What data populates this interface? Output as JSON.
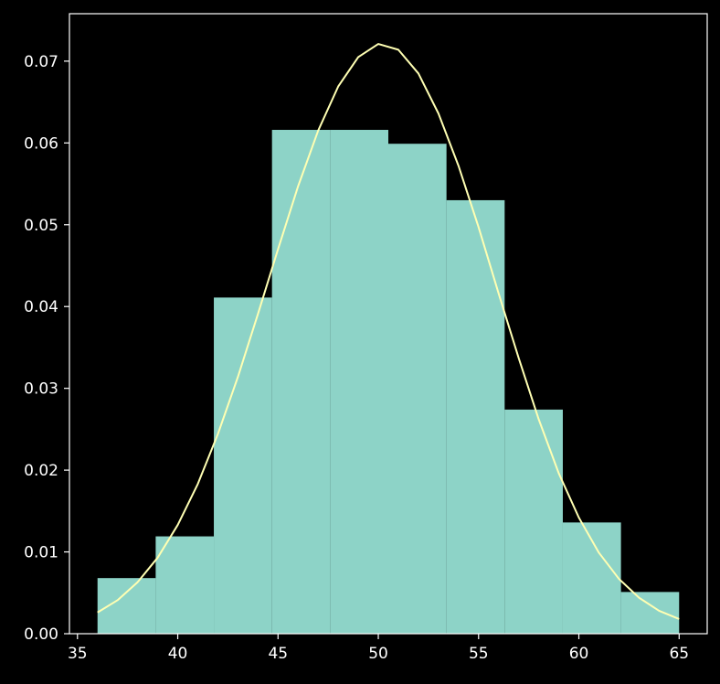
{
  "colors": {
    "background": "#000000",
    "axes": "#ffffff",
    "bars": "#8dd3c7",
    "curve": "#ffffb3",
    "text": "#ffffff"
  },
  "chart_data": {
    "type": "bar",
    "subtype": "histogram-with-density-curve",
    "title": "",
    "xlabel": "",
    "ylabel": "",
    "xlim": [
      34.6,
      66.4
    ],
    "ylim": [
      0,
      0.0758
    ],
    "grid": false,
    "legend": "none",
    "x_ticks": [
      35,
      40,
      45,
      50,
      55,
      60,
      65
    ],
    "x_tick_labels": [
      "35",
      "40",
      "45",
      "50",
      "55",
      "60",
      "65"
    ],
    "y_ticks": [
      0.0,
      0.01,
      0.02,
      0.03,
      0.04,
      0.05,
      0.06,
      0.07
    ],
    "y_tick_labels": [
      "0.00",
      "0.01",
      "0.02",
      "0.03",
      "0.04",
      "0.05",
      "0.06",
      "0.07"
    ],
    "bins": [
      {
        "start": 36.0,
        "end": 38.9,
        "value": 0.0068
      },
      {
        "start": 38.9,
        "end": 41.8,
        "value": 0.0119
      },
      {
        "start": 41.8,
        "end": 44.7,
        "value": 0.0411
      },
      {
        "start": 44.7,
        "end": 47.6,
        "value": 0.0616
      },
      {
        "start": 47.6,
        "end": 50.5,
        "value": 0.0616
      },
      {
        "start": 50.5,
        "end": 53.4,
        "value": 0.0599
      },
      {
        "start": 53.4,
        "end": 56.3,
        "value": 0.053
      },
      {
        "start": 56.3,
        "end": 59.2,
        "value": 0.0274
      },
      {
        "start": 59.2,
        "end": 62.1,
        "value": 0.0136
      },
      {
        "start": 62.1,
        "end": 65.0,
        "value": 0.0051
      }
    ],
    "curve": {
      "x": [
        36,
        37,
        38,
        39,
        40,
        41,
        42,
        43,
        44,
        45,
        46,
        47,
        48,
        49,
        50,
        51,
        52,
        53,
        54,
        55,
        56,
        57,
        58,
        59,
        60,
        61,
        62,
        63,
        64,
        65
      ],
      "y": [
        0.0026,
        0.0041,
        0.0063,
        0.0093,
        0.0133,
        0.0183,
        0.0244,
        0.0314,
        0.0391,
        0.047,
        0.0547,
        0.0615,
        0.0669,
        0.0705,
        0.0721,
        0.0714,
        0.0685,
        0.0636,
        0.0572,
        0.0497,
        0.0416,
        0.0337,
        0.0262,
        0.0196,
        0.0142,
        0.0099,
        0.0067,
        0.0044,
        0.0028,
        0.0018
      ]
    }
  }
}
